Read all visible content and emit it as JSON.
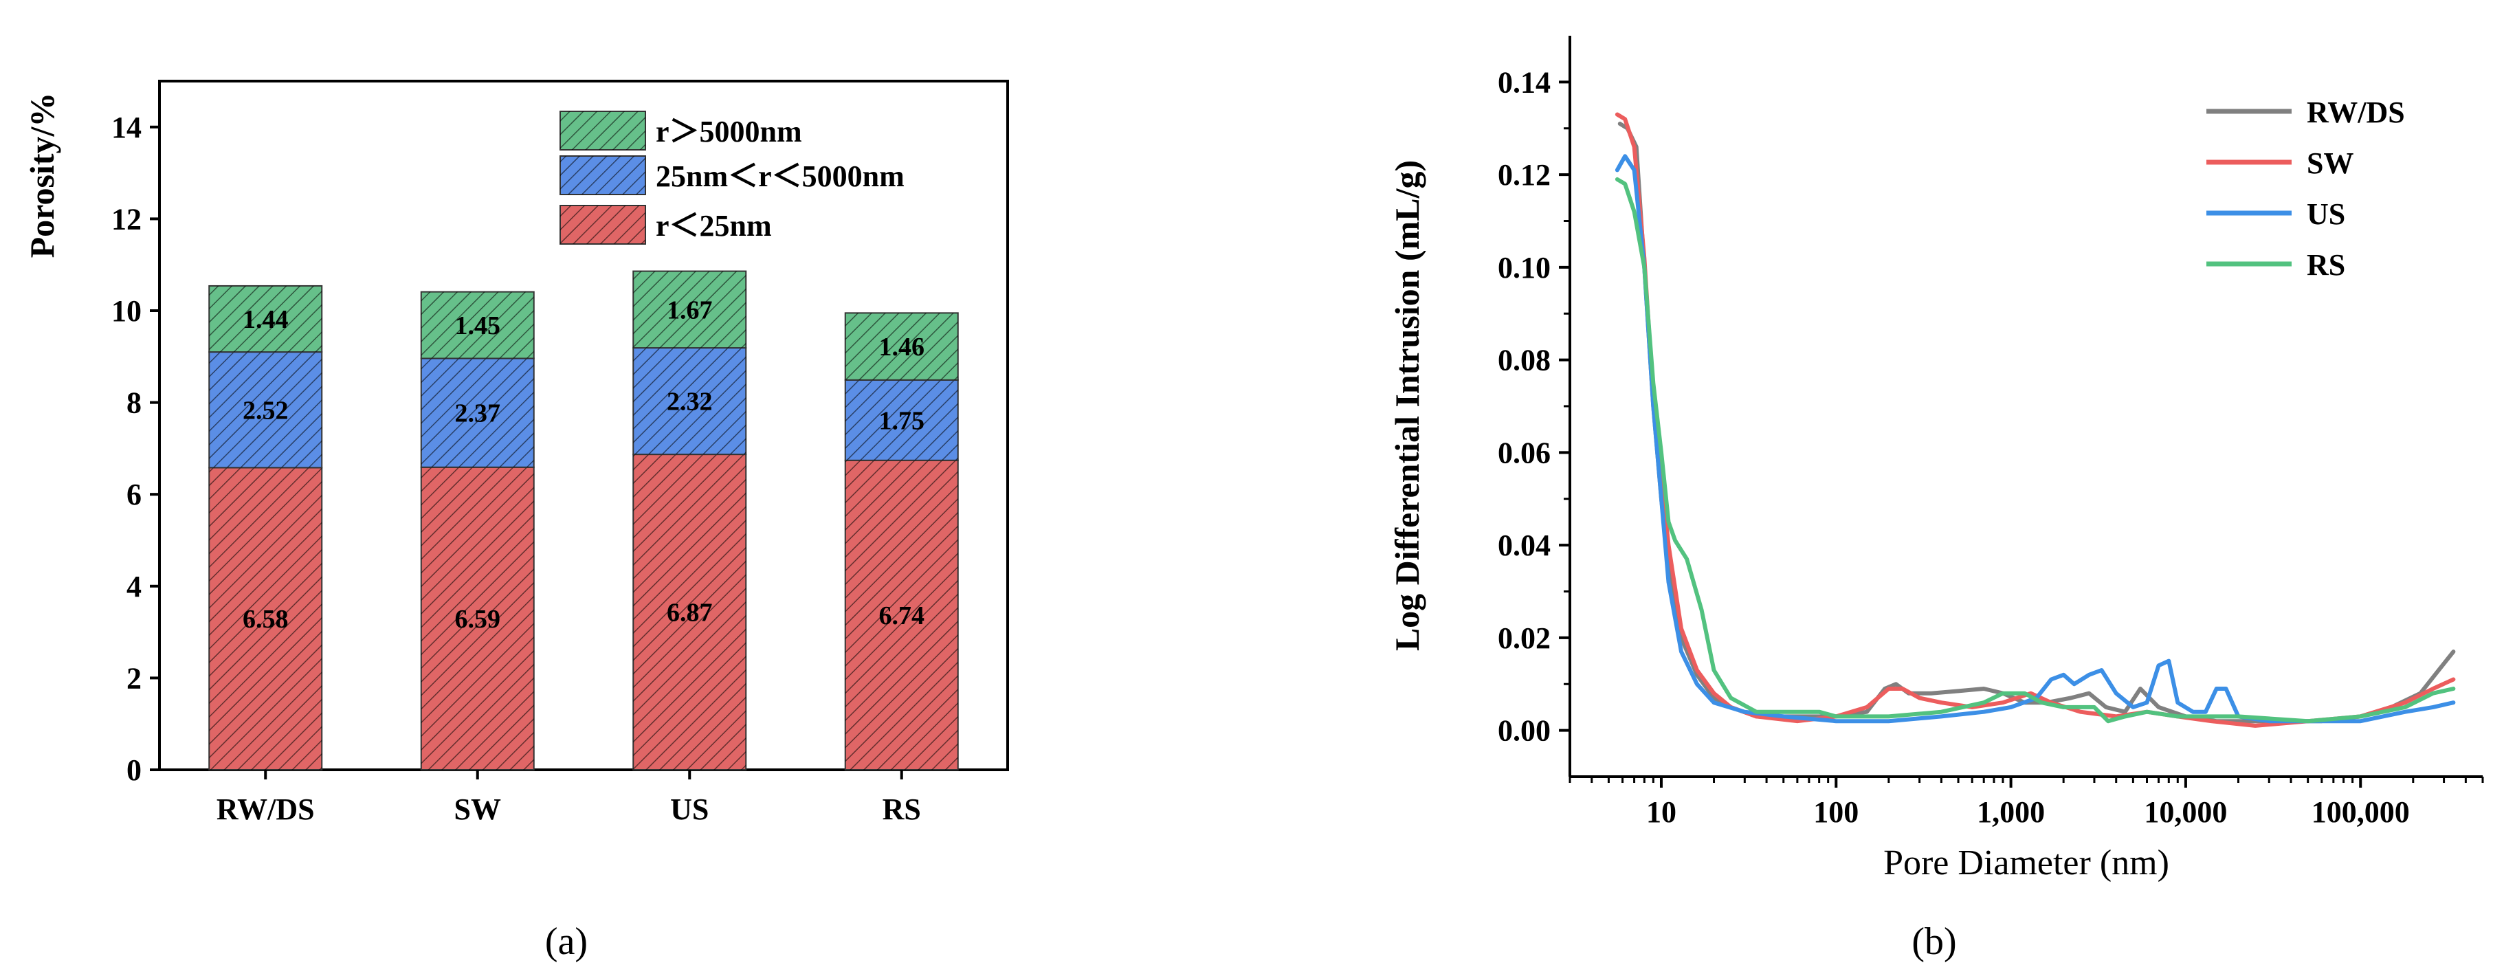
{
  "chart_data": [
    {
      "panel": "(a)",
      "type": "bar",
      "stacked": true,
      "title": "",
      "xlabel": "",
      "ylabel": "Porosity/%",
      "ylim": [
        0,
        15
      ],
      "yticks": [
        0,
        2,
        4,
        6,
        8,
        10,
        12,
        14
      ],
      "categories": [
        "RW/DS",
        "SW",
        "US",
        "RS"
      ],
      "series": [
        {
          "name": "r＜25nm",
          "color": "#e06666",
          "values": [
            6.58,
            6.59,
            6.87,
            6.74
          ],
          "labels": [
            "6.58",
            "6.59",
            "6.87",
            "6.74"
          ]
        },
        {
          "name": "25nm＜r＜5000nm",
          "color": "#5b8ee6",
          "values": [
            2.52,
            2.37,
            2.32,
            1.75
          ],
          "labels": [
            "2.52",
            "2.37",
            "2.32",
            "1.75"
          ]
        },
        {
          "name": "r＞5000nm",
          "color": "#66c08a",
          "values": [
            1.44,
            1.45,
            1.67,
            1.46
          ],
          "labels": [
            "1.44",
            "1.45",
            "1.67",
            "1.46"
          ]
        }
      ],
      "legend_order": [
        "r＞5000nm",
        "25nm＜r＜5000nm",
        "r＜25nm"
      ],
      "legend_position": "top-right"
    },
    {
      "panel": "(b)",
      "type": "line",
      "title": "",
      "xlabel": "Pore Diameter (nm)",
      "ylabel": "Log Differential Intrusion (mL/g)",
      "xscale": "log",
      "xlim": [
        3,
        500000
      ],
      "ylim": [
        -0.01,
        0.15
      ],
      "yticks": [
        0.0,
        0.02,
        0.04,
        0.06,
        0.08,
        0.1,
        0.12,
        0.14
      ],
      "ytick_labels": [
        "0.00",
        "0.02",
        "0.04",
        "0.06",
        "0.08",
        "0.10",
        "0.12",
        "0.14"
      ],
      "xticks": [
        10,
        100,
        1000,
        10000,
        100000
      ],
      "xtick_labels": [
        "10",
        "100",
        "1,000",
        "10,000",
        "100,000"
      ],
      "legend_position": "top-right",
      "series": [
        {
          "name": "RW/DS",
          "color": "#808080",
          "points": [
            [
              5.8,
              0.131
            ],
            [
              6.4,
              0.13
            ],
            [
              7.2,
              0.126
            ],
            [
              8,
              0.1
            ],
            [
              9,
              0.07
            ],
            [
              10,
              0.05
            ],
            [
              11,
              0.035
            ],
            [
              13,
              0.02
            ],
            [
              16,
              0.012
            ],
            [
              20,
              0.007
            ],
            [
              25,
              0.005
            ],
            [
              35,
              0.003
            ],
            [
              60,
              0.003
            ],
            [
              100,
              0.003
            ],
            [
              150,
              0.004
            ],
            [
              190,
              0.009
            ],
            [
              220,
              0.01
            ],
            [
              260,
              0.008
            ],
            [
              350,
              0.008
            ],
            [
              500,
              0.0085
            ],
            [
              700,
              0.009
            ],
            [
              900,
              0.008
            ],
            [
              1200,
              0.006
            ],
            [
              1600,
              0.006
            ],
            [
              2200,
              0.007
            ],
            [
              2800,
              0.008
            ],
            [
              3500,
              0.005
            ],
            [
              4500,
              0.004
            ],
            [
              5500,
              0.009
            ],
            [
              7000,
              0.005
            ],
            [
              10000,
              0.003
            ],
            [
              15000,
              0.002
            ],
            [
              30000,
              0.002
            ],
            [
              60000,
              0.002
            ],
            [
              100000,
              0.003
            ],
            [
              150000,
              0.005
            ],
            [
              220000,
              0.008
            ],
            [
              280000,
              0.013
            ],
            [
              340000,
              0.017
            ]
          ]
        },
        {
          "name": "SW",
          "color": "#ec5d5d",
          "points": [
            [
              5.6,
              0.133
            ],
            [
              6.2,
              0.132
            ],
            [
              7,
              0.126
            ],
            [
              8,
              0.102
            ],
            [
              9,
              0.072
            ],
            [
              10,
              0.055
            ],
            [
              11,
              0.04
            ],
            [
              13,
              0.022
            ],
            [
              16,
              0.013
            ],
            [
              20,
              0.008
            ],
            [
              25,
              0.005
            ],
            [
              35,
              0.003
            ],
            [
              60,
              0.002
            ],
            [
              100,
              0.003
            ],
            [
              150,
              0.005
            ],
            [
              200,
              0.009
            ],
            [
              240,
              0.009
            ],
            [
              300,
              0.007
            ],
            [
              400,
              0.006
            ],
            [
              600,
              0.005
            ],
            [
              900,
              0.006
            ],
            [
              1300,
              0.008
            ],
            [
              1700,
              0.006
            ],
            [
              2500,
              0.004
            ],
            [
              4000,
              0.003
            ],
            [
              6000,
              0.004
            ],
            [
              9000,
              0.003
            ],
            [
              14000,
              0.002
            ],
            [
              25000,
              0.001
            ],
            [
              50000,
              0.002
            ],
            [
              100000,
              0.003
            ],
            [
              180000,
              0.006
            ],
            [
              260000,
              0.009
            ],
            [
              340000,
              0.011
            ]
          ]
        },
        {
          "name": "US",
          "color": "#3c8fe6",
          "points": [
            [
              5.6,
              0.121
            ],
            [
              6.2,
              0.124
            ],
            [
              7,
              0.121
            ],
            [
              8,
              0.1
            ],
            [
              9,
              0.07
            ],
            [
              10,
              0.05
            ],
            [
              11,
              0.032
            ],
            [
              13,
              0.017
            ],
            [
              16,
              0.01
            ],
            [
              20,
              0.006
            ],
            [
              30,
              0.004
            ],
            [
              50,
              0.003
            ],
            [
              100,
              0.002
            ],
            [
              200,
              0.002
            ],
            [
              400,
              0.003
            ],
            [
              700,
              0.004
            ],
            [
              1000,
              0.005
            ],
            [
              1400,
              0.007
            ],
            [
              1700,
              0.011
            ],
            [
              2000,
              0.012
            ],
            [
              2300,
              0.01
            ],
            [
              2800,
              0.012
            ],
            [
              3300,
              0.013
            ],
            [
              4000,
              0.008
            ],
            [
              5000,
              0.005
            ],
            [
              6000,
              0.006
            ],
            [
              7000,
              0.014
            ],
            [
              8000,
              0.015
            ],
            [
              9000,
              0.006
            ],
            [
              11000,
              0.004
            ],
            [
              13000,
              0.004
            ],
            [
              15000,
              0.009
            ],
            [
              17000,
              0.009
            ],
            [
              20000,
              0.003
            ],
            [
              30000,
              0.002
            ],
            [
              60000,
              0.002
            ],
            [
              100000,
              0.002
            ],
            [
              180000,
              0.004
            ],
            [
              260000,
              0.005
            ],
            [
              340000,
              0.006
            ]
          ]
        },
        {
          "name": "RS",
          "color": "#52c27f",
          "points": [
            [
              5.6,
              0.119
            ],
            [
              6.2,
              0.118
            ],
            [
              7,
              0.112
            ],
            [
              8,
              0.1
            ],
            [
              9,
              0.075
            ],
            [
              10,
              0.06
            ],
            [
              11,
              0.045
            ],
            [
              12,
              0.041
            ],
            [
              14,
              0.037
            ],
            [
              17,
              0.026
            ],
            [
              20,
              0.013
            ],
            [
              25,
              0.007
            ],
            [
              35,
              0.004
            ],
            [
              60,
              0.004
            ],
            [
              80,
              0.004
            ],
            [
              100,
              0.003
            ],
            [
              200,
              0.003
            ],
            [
              400,
              0.004
            ],
            [
              700,
              0.006
            ],
            [
              900,
              0.008
            ],
            [
              1200,
              0.008
            ],
            [
              1500,
              0.006
            ],
            [
              2000,
              0.005
            ],
            [
              3000,
              0.005
            ],
            [
              3600,
              0.002
            ],
            [
              4500,
              0.003
            ],
            [
              6000,
              0.004
            ],
            [
              9000,
              0.003
            ],
            [
              20000,
              0.003
            ],
            [
              50000,
              0.002
            ],
            [
              100000,
              0.003
            ],
            [
              180000,
              0.005
            ],
            [
              260000,
              0.008
            ],
            [
              340000,
              0.009
            ]
          ]
        }
      ]
    }
  ]
}
